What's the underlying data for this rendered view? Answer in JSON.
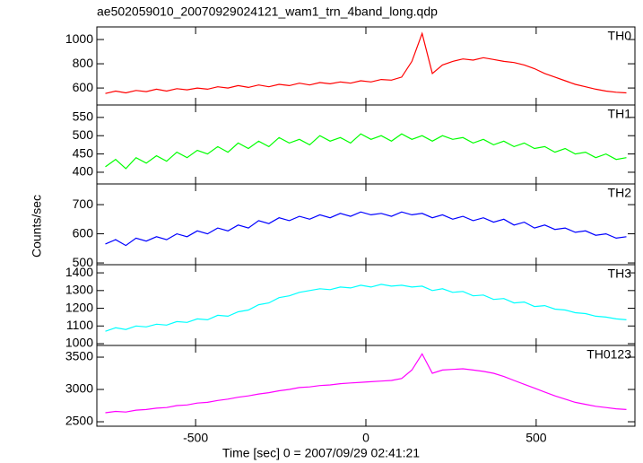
{
  "title": "ae502059010_20070929024121_wam1_trn_4band_long.qdp",
  "xlabel": "Time [sec] 0 = 2007/09/29 02:41:21",
  "ylabel": "Counts/sec",
  "chart_data": [
    {
      "type": "line",
      "xlim": [
        -790,
        790
      ],
      "xticks": [
        -500,
        0,
        500
      ],
      "ylim": [
        460,
        1104
      ],
      "yticks": [
        600,
        800,
        1000
      ],
      "x": [
        -765,
        -735,
        -705,
        -675,
        -645,
        -615,
        -585,
        -555,
        -525,
        -495,
        -465,
        -435,
        -405,
        -375,
        -345,
        -315,
        -285,
        -255,
        -225,
        -195,
        -165,
        -135,
        -105,
        -75,
        -45,
        -15,
        15,
        45,
        75,
        105,
        135,
        165,
        195,
        225,
        255,
        285,
        315,
        345,
        375,
        405,
        435,
        465,
        495,
        525,
        555,
        585,
        615,
        645,
        675,
        705,
        735,
        765
      ],
      "series": [
        {
          "name": "TH0",
          "color": "#ff0000",
          "values": [
            555,
            575,
            560,
            580,
            570,
            590,
            575,
            595,
            585,
            600,
            590,
            610,
            600,
            620,
            605,
            625,
            610,
            630,
            620,
            640,
            625,
            645,
            635,
            650,
            640,
            660,
            650,
            670,
            665,
            690,
            820,
            1050,
            720,
            790,
            820,
            840,
            830,
            850,
            835,
            820,
            810,
            790,
            760,
            720,
            690,
            660,
            630,
            610,
            590,
            575,
            565,
            560
          ]
        }
      ]
    },
    {
      "type": "line",
      "xlim": [
        -790,
        790
      ],
      "xticks": [
        -500,
        0,
        500
      ],
      "ylim": [
        368,
        584
      ],
      "yticks": [
        400,
        450,
        500,
        550
      ],
      "x": [
        -765,
        -735,
        -705,
        -675,
        -645,
        -615,
        -585,
        -555,
        -525,
        -495,
        -465,
        -435,
        -405,
        -375,
        -345,
        -315,
        -285,
        -255,
        -225,
        -195,
        -165,
        -135,
        -105,
        -75,
        -45,
        -15,
        15,
        45,
        75,
        105,
        135,
        165,
        195,
        225,
        255,
        285,
        315,
        345,
        375,
        405,
        435,
        465,
        495,
        525,
        555,
        585,
        615,
        645,
        675,
        705,
        735,
        765
      ],
      "series": [
        {
          "name": "TH1",
          "color": "#00ff00",
          "values": [
            415,
            435,
            410,
            440,
            425,
            445,
            430,
            455,
            440,
            460,
            450,
            470,
            455,
            480,
            465,
            485,
            470,
            495,
            480,
            490,
            475,
            500,
            485,
            495,
            480,
            505,
            490,
            500,
            485,
            505,
            490,
            500,
            485,
            500,
            490,
            495,
            480,
            490,
            475,
            485,
            470,
            480,
            465,
            470,
            455,
            465,
            450,
            455,
            440,
            450,
            435,
            440
          ]
        }
      ]
    },
    {
      "type": "line",
      "xlim": [
        -790,
        790
      ],
      "xticks": [
        -500,
        0,
        500
      ],
      "ylim": [
        494,
        771
      ],
      "yticks": [
        500,
        600,
        700
      ],
      "x": [
        -765,
        -735,
        -705,
        -675,
        -645,
        -615,
        -585,
        -555,
        -525,
        -495,
        -465,
        -435,
        -405,
        -375,
        -345,
        -315,
        -285,
        -255,
        -225,
        -195,
        -165,
        -135,
        -105,
        -75,
        -45,
        -15,
        15,
        45,
        75,
        105,
        135,
        165,
        195,
        225,
        255,
        285,
        315,
        345,
        375,
        405,
        435,
        465,
        495,
        525,
        555,
        585,
        615,
        645,
        675,
        705,
        735,
        765
      ],
      "series": [
        {
          "name": "TH2",
          "color": "#0000ff",
          "values": [
            565,
            580,
            560,
            585,
            575,
            590,
            580,
            600,
            590,
            610,
            600,
            620,
            610,
            630,
            620,
            645,
            635,
            655,
            645,
            660,
            650,
            665,
            655,
            670,
            660,
            675,
            665,
            670,
            660,
            675,
            665,
            670,
            655,
            665,
            650,
            660,
            645,
            655,
            640,
            650,
            630,
            640,
            620,
            630,
            615,
            620,
            605,
            610,
            595,
            600,
            585,
            590
          ]
        }
      ]
    },
    {
      "type": "line",
      "xlim": [
        -790,
        790
      ],
      "xticks": [
        -500,
        0,
        500
      ],
      "ylim": [
        990,
        1446
      ],
      "yticks": [
        1000,
        1100,
        1200,
        1300,
        1400
      ],
      "x": [
        -765,
        -735,
        -705,
        -675,
        -645,
        -615,
        -585,
        -555,
        -525,
        -495,
        -465,
        -435,
        -405,
        -375,
        -345,
        -315,
        -285,
        -255,
        -225,
        -195,
        -165,
        -135,
        -105,
        -75,
        -45,
        -15,
        15,
        45,
        75,
        105,
        135,
        165,
        195,
        225,
        255,
        285,
        315,
        345,
        375,
        405,
        435,
        465,
        495,
        525,
        555,
        585,
        615,
        645,
        675,
        705,
        735,
        765
      ],
      "series": [
        {
          "name": "TH3",
          "color": "#00ffff",
          "values": [
            1070,
            1090,
            1080,
            1100,
            1095,
            1110,
            1105,
            1125,
            1120,
            1140,
            1135,
            1160,
            1155,
            1180,
            1190,
            1220,
            1230,
            1260,
            1270,
            1290,
            1300,
            1310,
            1305,
            1320,
            1315,
            1330,
            1320,
            1335,
            1325,
            1330,
            1320,
            1325,
            1300,
            1310,
            1290,
            1295,
            1270,
            1275,
            1250,
            1255,
            1230,
            1235,
            1210,
            1215,
            1195,
            1190,
            1175,
            1170,
            1155,
            1150,
            1140,
            1135
          ]
        }
      ]
    },
    {
      "type": "line",
      "xlim": [
        -790,
        790
      ],
      "xticks": [
        -500,
        0,
        500
      ],
      "ylim": [
        2431,
        3681
      ],
      "yticks": [
        2500,
        3000,
        3500
      ],
      "x": [
        -765,
        -735,
        -705,
        -675,
        -645,
        -615,
        -585,
        -555,
        -525,
        -495,
        -465,
        -435,
        -405,
        -375,
        -345,
        -315,
        -285,
        -255,
        -225,
        -195,
        -165,
        -135,
        -105,
        -75,
        -45,
        -15,
        15,
        45,
        75,
        105,
        135,
        165,
        195,
        225,
        255,
        285,
        315,
        345,
        375,
        405,
        435,
        465,
        495,
        525,
        555,
        585,
        615,
        645,
        675,
        705,
        735,
        765
      ],
      "series": [
        {
          "name": "TH0123",
          "color": "#ff00ff",
          "values": [
            2640,
            2660,
            2650,
            2680,
            2690,
            2710,
            2720,
            2750,
            2760,
            2790,
            2800,
            2830,
            2850,
            2880,
            2900,
            2930,
            2950,
            2980,
            3000,
            3030,
            3040,
            3060,
            3070,
            3090,
            3100,
            3110,
            3120,
            3130,
            3140,
            3170,
            3300,
            3550,
            3250,
            3300,
            3310,
            3320,
            3300,
            3280,
            3250,
            3200,
            3140,
            3080,
            3020,
            2960,
            2900,
            2850,
            2800,
            2770,
            2740,
            2720,
            2700,
            2690
          ]
        }
      ]
    }
  ]
}
